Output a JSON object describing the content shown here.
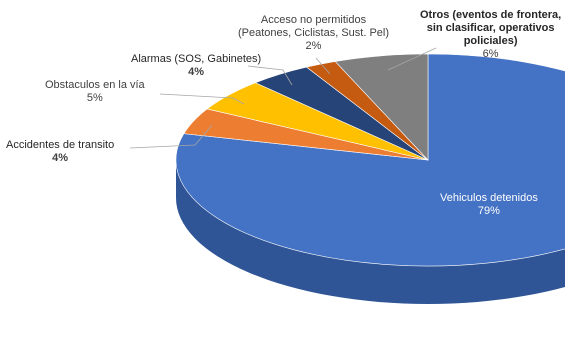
{
  "chart_data": {
    "type": "pie",
    "title": "",
    "slices": [
      {
        "label": "Vehiculos detenidos",
        "value": 79,
        "value_label": "79%",
        "color": "#4472C4",
        "dark": "#2F5597"
      },
      {
        "label": "Accidentes de transito",
        "value": 4,
        "value_label": "4%",
        "color": "#ED7D31",
        "dark": "#B55A1E"
      },
      {
        "label": "Obstaculos en la vía",
        "value": 5,
        "value_label": "5%",
        "color": "#FFC000",
        "dark": "#C09000"
      },
      {
        "label": "Alarmas (SOS, Gabinetes)",
        "value": 4,
        "value_label": "4%",
        "color": "#264478",
        "dark": "#172B4D"
      },
      {
        "label": "Acceso no permitidos (Peatones, Ciclistas, Sust. Pel)",
        "value": 2,
        "value_label": "2%",
        "color": "#C55A11",
        "dark": "#8A3F0C"
      },
      {
        "label": "Otros (eventos de frontera, sin clasificar, operativos policiales)",
        "value": 6,
        "value_label": "6%",
        "color": "#7F7F7F",
        "dark": "#595959"
      }
    ],
    "label_lines": {
      "acceso": [
        "Acceso no permitidos",
        "(Peatones, Ciclistas, Sust. Pel)"
      ],
      "otros": [
        "Otros (eventos de frontera,",
        "sin clasificar, operativos",
        "policiales)"
      ]
    },
    "style": "3d-pie",
    "legend": "none"
  }
}
